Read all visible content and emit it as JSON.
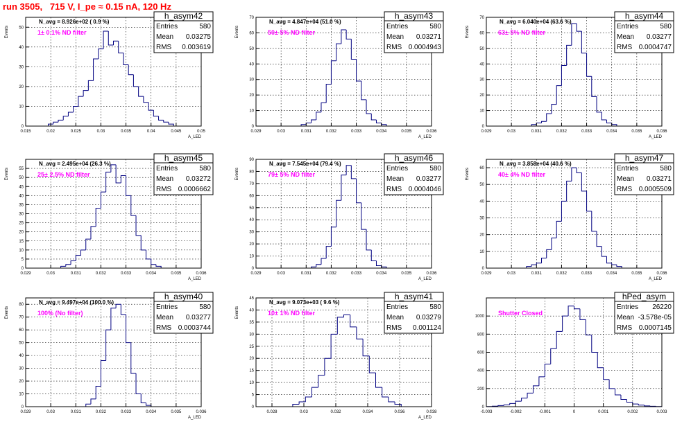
{
  "run_title": "run 3505,   715 V, I_pe ≈ 0.15 nA, 120 Hz",
  "chart_data": [
    {
      "type": "bar",
      "name": "h_asym42",
      "stats": {
        "Entries": "580",
        "Mean": "0.03275",
        "RMS": "0.003619"
      },
      "navg": "N_avg = 8.926e+02 ( 0.9 %)",
      "filter_label": "1± 0.1% ND filter",
      "xlabel": "A_LED",
      "ylabel": "Events",
      "xlim": [
        0.015,
        0.05
      ],
      "ylim": [
        0,
        55
      ],
      "xticks": [
        0.015,
        0.02,
        0.025,
        0.03,
        0.035,
        0.04,
        0.045,
        0.05
      ],
      "yticks": [
        0,
        10,
        20,
        30,
        40,
        50
      ],
      "x": [
        0.02,
        0.021,
        0.022,
        0.023,
        0.024,
        0.025,
        0.026,
        0.027,
        0.028,
        0.029,
        0.03,
        0.031,
        0.032,
        0.033,
        0.034,
        0.035,
        0.036,
        0.037,
        0.038,
        0.039,
        0.04,
        0.041,
        0.042,
        0.043,
        0.044
      ],
      "values": [
        1,
        2,
        3,
        5,
        7,
        10,
        15,
        18,
        23,
        34,
        39,
        48,
        41,
        43,
        37,
        31,
        26,
        20,
        15,
        12,
        8,
        5,
        3,
        2,
        1
      ],
      "binw": 0.001
    },
    {
      "type": "bar",
      "name": "h_asym43",
      "stats": {
        "Entries": "580",
        "Mean": "0.03271",
        "RMS": "0.0004943"
      },
      "navg": "N_avg = 4.847e+04 (51.0 %)",
      "filter_label": "50± 5% ND filter",
      "xlabel": "A_LED",
      "ylabel": "Events",
      "xlim": [
        0.029,
        0.036
      ],
      "ylim": [
        0,
        70
      ],
      "xticks": [
        0.029,
        0.03,
        0.031,
        0.032,
        0.033,
        0.034,
        0.035,
        0.036
      ],
      "yticks": [
        0,
        10,
        20,
        30,
        40,
        50,
        60,
        70
      ],
      "x": [
        0.0309,
        0.0311,
        0.0313,
        0.0315,
        0.0317,
        0.0319,
        0.0321,
        0.0323,
        0.0325,
        0.0327,
        0.0329,
        0.0331,
        0.0333,
        0.0335,
        0.0337,
        0.0339,
        0.0341
      ],
      "values": [
        1,
        2,
        4,
        9,
        15,
        27,
        42,
        53,
        62,
        56,
        43,
        29,
        17,
        8,
        4,
        2,
        1
      ],
      "binw": 0.0002
    },
    {
      "type": "bar",
      "name": "h_asym44",
      "stats": {
        "Entries": "580",
        "Mean": "0.03277",
        "RMS": "0.0004747"
      },
      "navg": "N_avg = 6.040e+04 (63.6 %)",
      "filter_label": "63± 5% ND filter",
      "xlabel": "A_LED",
      "ylabel": "Events",
      "xlim": [
        0.029,
        0.036
      ],
      "ylim": [
        0,
        70
      ],
      "xticks": [
        0.029,
        0.03,
        0.031,
        0.032,
        0.033,
        0.034,
        0.035,
        0.036
      ],
      "yticks": [
        0,
        10,
        20,
        30,
        40,
        50,
        60,
        70
      ],
      "x": [
        0.0309,
        0.0311,
        0.0313,
        0.0315,
        0.0317,
        0.0319,
        0.0321,
        0.0323,
        0.0325,
        0.0327,
        0.0329,
        0.0331,
        0.0333,
        0.0335,
        0.0337,
        0.0339,
        0.0341
      ],
      "values": [
        1,
        2,
        3,
        8,
        14,
        26,
        39,
        52,
        66,
        61,
        47,
        32,
        19,
        9,
        4,
        2,
        1
      ],
      "binw": 0.0002
    },
    {
      "type": "bar",
      "name": "h_asym45",
      "stats": {
        "Entries": "580",
        "Mean": "0.03272",
        "RMS": "0.0006662"
      },
      "navg": "N_avg = 2.495e+04 (26.3 %)",
      "filter_label": "25± 2.5% ND filter",
      "xlabel": "A_LED",
      "ylabel": "Events",
      "xlim": [
        0.029,
        0.036
      ],
      "ylim": [
        0,
        60
      ],
      "xticks": [
        0.029,
        0.03,
        0.031,
        0.032,
        0.033,
        0.034,
        0.035,
        0.036
      ],
      "yticks": [
        0,
        5,
        10,
        15,
        20,
        25,
        30,
        35,
        40,
        45,
        50,
        55
      ],
      "x": [
        0.0305,
        0.0307,
        0.0309,
        0.0311,
        0.0313,
        0.0315,
        0.0317,
        0.0319,
        0.0321,
        0.0323,
        0.0325,
        0.0327,
        0.0329,
        0.0331,
        0.0333,
        0.0335,
        0.0337,
        0.0339,
        0.0341,
        0.0343
      ],
      "values": [
        1,
        2,
        4,
        7,
        10,
        16,
        23,
        33,
        42,
        53,
        57,
        47,
        51,
        40,
        29,
        18,
        10,
        5,
        2,
        1
      ],
      "binw": 0.0002
    },
    {
      "type": "bar",
      "name": "h_asym46",
      "stats": {
        "Entries": "580",
        "Mean": "0.03277",
        "RMS": "0.0004046"
      },
      "navg": "N_avg = 7.545e+04 (79.4 %)",
      "filter_label": "79± 5% ND filter",
      "xlabel": "A_LED",
      "ylabel": "Events",
      "xlim": [
        0.029,
        0.036
      ],
      "ylim": [
        0,
        90
      ],
      "xticks": [
        0.029,
        0.03,
        0.031,
        0.032,
        0.033,
        0.034,
        0.035,
        0.036
      ],
      "yticks": [
        0,
        10,
        20,
        30,
        40,
        50,
        60,
        70,
        80,
        90
      ],
      "x": [
        0.0313,
        0.0315,
        0.0317,
        0.0319,
        0.0321,
        0.0323,
        0.0325,
        0.0327,
        0.0329,
        0.0331,
        0.0333,
        0.0335,
        0.0337,
        0.0339,
        0.0341
      ],
      "values": [
        1,
        3,
        8,
        18,
        34,
        56,
        77,
        85,
        74,
        54,
        32,
        15,
        6,
        2,
        1
      ],
      "binw": 0.0002
    },
    {
      "type": "bar",
      "name": "h_asym47",
      "stats": {
        "Entries": "580",
        "Mean": "0.03271",
        "RMS": "0.0005509"
      },
      "navg": "N_avg = 3.858e+04 (40.6 %)",
      "filter_label": "40± 4% ND filter",
      "xlabel": "A_LED",
      "ylabel": "Events",
      "xlim": [
        0.029,
        0.036
      ],
      "ylim": [
        0,
        65
      ],
      "xticks": [
        0.029,
        0.03,
        0.031,
        0.032,
        0.033,
        0.034,
        0.035,
        0.036
      ],
      "yticks": [
        0,
        10,
        20,
        30,
        40,
        50,
        60
      ],
      "x": [
        0.0307,
        0.0309,
        0.0311,
        0.0313,
        0.0315,
        0.0317,
        0.0319,
        0.0321,
        0.0323,
        0.0325,
        0.0327,
        0.0329,
        0.0331,
        0.0333,
        0.0335,
        0.0337,
        0.0339,
        0.0341,
        0.0343
      ],
      "values": [
        1,
        2,
        3,
        6,
        11,
        18,
        28,
        40,
        52,
        60,
        57,
        46,
        34,
        22,
        13,
        7,
        3,
        2,
        1
      ],
      "binw": 0.0002
    },
    {
      "type": "bar",
      "name": "h_asym40",
      "stats": {
        "Entries": "580",
        "Mean": "0.03277",
        "RMS": "0.0003744"
      },
      "navg": "N_avg = 9.497e+04 (100.0 %)",
      "filter_label": "100% (No filter)",
      "xlabel": "A_LED",
      "ylabel": "Events",
      "xlim": [
        0.029,
        0.036
      ],
      "ylim": [
        0,
        85
      ],
      "xticks": [
        0.029,
        0.03,
        0.031,
        0.032,
        0.033,
        0.034,
        0.035,
        0.036
      ],
      "yticks": [
        0,
        10,
        20,
        30,
        40,
        50,
        60,
        70,
        80
      ],
      "x": [
        0.0315,
        0.0317,
        0.0319,
        0.0321,
        0.0323,
        0.0325,
        0.0327,
        0.0329,
        0.0331,
        0.0333,
        0.0335,
        0.0337,
        0.0339
      ],
      "values": [
        2,
        6,
        16,
        36,
        60,
        77,
        80,
        72,
        50,
        26,
        10,
        3,
        1
      ],
      "binw": 0.0002
    },
    {
      "type": "bar",
      "name": "h_asym41",
      "stats": {
        "Entries": "580",
        "Mean": "0.03279",
        "RMS": "0.001124"
      },
      "navg": "N_avg = 9.073e+03 ( 9.6 %)",
      "filter_label": "10± 1% ND filter",
      "xlabel": "A_LED",
      "ylabel": "Events",
      "xlim": [
        0.027,
        0.038
      ],
      "ylim": [
        0,
        45
      ],
      "xticks": [
        0.028,
        0.03,
        0.032,
        0.034,
        0.036,
        0.038
      ],
      "yticks": [
        0,
        5,
        10,
        15,
        20,
        25,
        30,
        35,
        40,
        45
      ],
      "x": [
        0.0295,
        0.0299,
        0.0303,
        0.0307,
        0.0311,
        0.0315,
        0.0319,
        0.0323,
        0.0327,
        0.0331,
        0.0335,
        0.0339,
        0.0343,
        0.0347,
        0.0351,
        0.0355,
        0.0359
      ],
      "values": [
        1,
        2,
        4,
        8,
        13,
        20,
        30,
        37,
        38,
        33,
        28,
        21,
        14,
        8,
        4,
        2,
        1
      ],
      "binw": 0.0004
    },
    {
      "type": "bar",
      "name": "hPed_asym",
      "stats": {
        "Entries": "26220",
        "Mean": "-3.578e-05",
        "RMS": "0.0007145"
      },
      "navg": "",
      "filter_label": "Shutter Closed",
      "xlabel": "",
      "ylabel": "",
      "xlim": [
        -0.003,
        0.003
      ],
      "ylim": [
        0,
        1200
      ],
      "xticks": [
        -0.003,
        -0.002,
        -0.001,
        0,
        0.001,
        0.002,
        0.003
      ],
      "yticks": [
        0,
        200,
        400,
        600,
        800,
        1000
      ],
      "x": [
        -0.0029,
        -0.0027,
        -0.0025,
        -0.0023,
        -0.0021,
        -0.0019,
        -0.0017,
        -0.0015,
        -0.0013,
        -0.0011,
        -0.0009,
        -0.0007,
        -0.0005,
        -0.0003,
        -0.0001,
        0.0001,
        0.0003,
        0.0005,
        0.0007,
        0.0009,
        0.0011,
        0.0013,
        0.0015,
        0.0017,
        0.0019,
        0.0021,
        0.0023,
        0.0025,
        0.0027,
        0.0029
      ],
      "values": [
        2,
        6,
        12,
        20,
        35,
        60,
        95,
        150,
        230,
        330,
        470,
        640,
        830,
        1000,
        1110,
        1080,
        960,
        790,
        600,
        430,
        300,
        200,
        130,
        80,
        50,
        30,
        17,
        9,
        5,
        2
      ],
      "binw": 0.0002
    }
  ]
}
